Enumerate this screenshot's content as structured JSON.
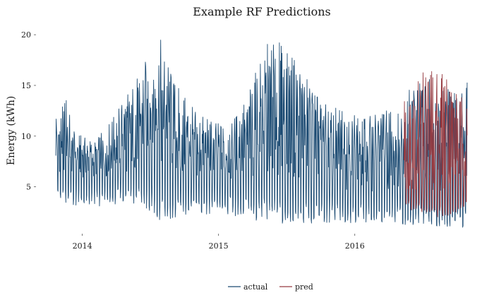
{
  "chart_data": {
    "type": "line",
    "title": "Example RF Predictions",
    "xlabel": "",
    "ylabel": "Energy (kWh)",
    "xlim": [
      "2013-10-20",
      "2016-10-30"
    ],
    "ylim": [
      1,
      20.5
    ],
    "x_ticks": [
      {
        "date": "2014-01-01",
        "label": "2014"
      },
      {
        "date": "2015-01-01",
        "label": "2015"
      },
      {
        "date": "2016-01-01",
        "label": "2016"
      }
    ],
    "y_ticks": [
      5,
      10,
      15,
      20
    ],
    "grid": false,
    "legend_position": "bottom",
    "colors": {
      "actual": "#1b4a72",
      "pred": "#963a40"
    },
    "series": [
      {
        "name": "actual",
        "color": "#1b4a72",
        "points": [
          {
            "x": "2013-10-22",
            "low": 3.1,
            "base": 6.3,
            "high": 13.2
          },
          {
            "x": "2013-11-05",
            "low": 3.2,
            "base": 6.2,
            "high": 12.5
          },
          {
            "x": "2013-11-20",
            "low": 3.2,
            "base": 6.0,
            "high": 14.2
          },
          {
            "x": "2013-12-05",
            "low": 3.1,
            "base": 5.9,
            "high": 10.6
          },
          {
            "x": "2014-01-01",
            "low": 3.0,
            "base": 5.9,
            "high": 10.0
          },
          {
            "x": "2014-02-01",
            "low": 3.0,
            "base": 5.8,
            "high": 9.5
          },
          {
            "x": "2014-03-01",
            "low": 3.1,
            "base": 5.9,
            "high": 10.6
          },
          {
            "x": "2014-04-01",
            "low": 3.2,
            "base": 6.0,
            "high": 12.3
          },
          {
            "x": "2014-05-01",
            "low": 3.2,
            "base": 6.1,
            "high": 14.4
          },
          {
            "x": "2014-06-01",
            "low": 3.3,
            "base": 6.0,
            "high": 16.4
          },
          {
            "x": "2014-07-01",
            "low": 2.5,
            "base": 5.9,
            "high": 18.5
          },
          {
            "x": "2014-08-01",
            "low": 1.5,
            "base": 5.7,
            "high": 19.6
          },
          {
            "x": "2014-09-01",
            "low": 1.7,
            "base": 5.4,
            "high": 15.8
          },
          {
            "x": "2014-10-01",
            "low": 2.0,
            "base": 5.2,
            "high": 14.0
          },
          {
            "x": "2014-11-01",
            "low": 2.1,
            "base": 5.1,
            "high": 12.5
          },
          {
            "x": "2014-12-01",
            "low": 2.2,
            "base": 5.2,
            "high": 11.8
          },
          {
            "x": "2015-01-01",
            "low": 2.1,
            "base": 5.2,
            "high": 11.3
          },
          {
            "x": "2015-02-01",
            "low": 2.2,
            "base": 5.3,
            "high": 11.5
          },
          {
            "x": "2015-03-01",
            "low": 2.0,
            "base": 5.4,
            "high": 12.8
          },
          {
            "x": "2015-04-01",
            "low": 1.8,
            "base": 5.5,
            "high": 15.2
          },
          {
            "x": "2015-05-01",
            "low": 1.5,
            "base": 5.6,
            "high": 18.6
          },
          {
            "x": "2015-06-01",
            "low": 1.3,
            "base": 5.6,
            "high": 20.2
          },
          {
            "x": "2015-07-01",
            "low": 1.2,
            "base": 5.5,
            "high": 18.2
          },
          {
            "x": "2015-08-01",
            "low": 1.1,
            "base": 5.3,
            "high": 17.7
          },
          {
            "x": "2015-09-01",
            "low": 1.2,
            "base": 5.1,
            "high": 15.5
          },
          {
            "x": "2015-10-01",
            "low": 1.3,
            "base": 5.0,
            "high": 13.6
          },
          {
            "x": "2015-11-01",
            "low": 1.4,
            "base": 4.8,
            "high": 12.6
          },
          {
            "x": "2015-12-01",
            "low": 1.5,
            "base": 4.7,
            "high": 13.3
          },
          {
            "x": "2016-01-01",
            "low": 1.4,
            "base": 4.6,
            "high": 12.3
          },
          {
            "x": "2016-02-01",
            "low": 1.5,
            "base": 4.6,
            "high": 11.8
          },
          {
            "x": "2016-03-01",
            "low": 1.4,
            "base": 4.5,
            "high": 12.5
          },
          {
            "x": "2016-04-01",
            "low": 1.4,
            "base": 4.5,
            "high": 12.8
          },
          {
            "x": "2016-05-01",
            "low": 1.3,
            "base": 4.5,
            "high": 13.2
          },
          {
            "x": "2016-06-01",
            "low": 1.2,
            "base": 4.4,
            "high": 15.2
          },
          {
            "x": "2016-07-01",
            "low": 1.1,
            "base": 4.4,
            "high": 16.0
          },
          {
            "x": "2016-08-01",
            "low": 1.0,
            "base": 4.3,
            "high": 15.5
          },
          {
            "x": "2016-09-01",
            "low": 1.0,
            "base": 4.2,
            "high": 15.1
          },
          {
            "x": "2016-10-01",
            "low": 1.0,
            "base": 4.2,
            "high": 14.2
          },
          {
            "x": "2016-10-28",
            "low": 1.0,
            "base": 4.2,
            "high": 15.8
          }
        ]
      },
      {
        "name": "pred",
        "color": "#963a40",
        "points": [
          {
            "x": "2016-05-12",
            "low": 3.2,
            "base": 4.5,
            "high": 13.4
          },
          {
            "x": "2016-06-01",
            "low": 2.6,
            "base": 4.4,
            "high": 15.6
          },
          {
            "x": "2016-07-01",
            "low": 2.2,
            "base": 4.3,
            "high": 16.6
          },
          {
            "x": "2016-08-01",
            "low": 2.0,
            "base": 4.2,
            "high": 17.2
          },
          {
            "x": "2016-09-01",
            "low": 2.1,
            "base": 4.1,
            "high": 16.4
          },
          {
            "x": "2016-10-01",
            "low": 2.4,
            "base": 4.0,
            "high": 14.6
          },
          {
            "x": "2016-10-28",
            "low": 3.4,
            "base": 4.0,
            "high": 13.2
          }
        ]
      }
    ]
  },
  "legend": {
    "items": [
      {
        "label": "actual",
        "color": "#1b4a72"
      },
      {
        "label": "pred",
        "color": "#963a40"
      }
    ]
  }
}
